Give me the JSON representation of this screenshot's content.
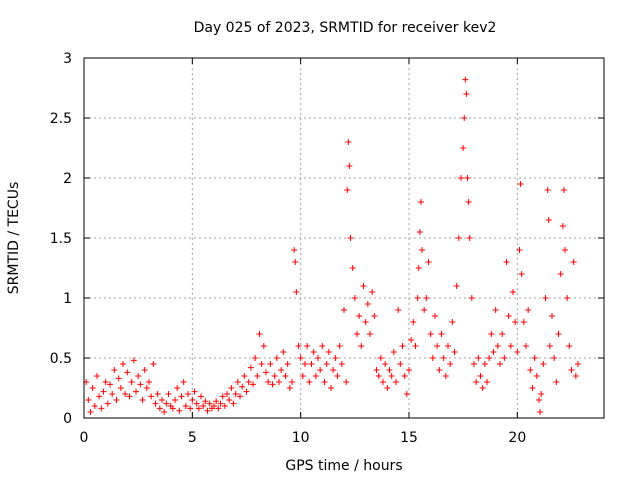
{
  "chart_data": {
    "type": "scatter",
    "title": "Day 025 of 2023, SRMTID for receiver kev2",
    "xlabel": "GPS time / hours",
    "ylabel": "SRMTID / TECUs",
    "xlim": [
      0,
      24
    ],
    "ylim": [
      0,
      3
    ],
    "xticks": [
      0,
      5,
      10,
      15,
      20
    ],
    "yticks": [
      0,
      0.5,
      1,
      1.5,
      2,
      2.5,
      3
    ],
    "xtick_labels": [
      "0",
      "5",
      "10",
      "15",
      "20"
    ],
    "ytick_labels": [
      "0",
      "0.5",
      "1",
      "1.5",
      "2",
      "2.5",
      "3"
    ],
    "grid": true,
    "marker": "+",
    "color": "#ff0000",
    "series": [
      {
        "name": "kev2",
        "points": [
          [
            0.1,
            0.3
          ],
          [
            0.2,
            0.15
          ],
          [
            0.3,
            0.05
          ],
          [
            0.4,
            0.25
          ],
          [
            0.5,
            0.1
          ],
          [
            0.6,
            0.35
          ],
          [
            0.7,
            0.18
          ],
          [
            0.8,
            0.08
          ],
          [
            0.9,
            0.22
          ],
          [
            1.0,
            0.3
          ],
          [
            1.1,
            0.12
          ],
          [
            1.2,
            0.28
          ],
          [
            1.3,
            0.2
          ],
          [
            1.4,
            0.4
          ],
          [
            1.5,
            0.15
          ],
          [
            1.6,
            0.33
          ],
          [
            1.7,
            0.25
          ],
          [
            1.8,
            0.45
          ],
          [
            1.9,
            0.2
          ],
          [
            2.0,
            0.38
          ],
          [
            2.1,
            0.18
          ],
          [
            2.2,
            0.3
          ],
          [
            2.3,
            0.48
          ],
          [
            2.4,
            0.22
          ],
          [
            2.5,
            0.35
          ],
          [
            2.6,
            0.28
          ],
          [
            2.7,
            0.15
          ],
          [
            2.8,
            0.4
          ],
          [
            2.9,
            0.25
          ],
          [
            3.0,
            0.3
          ],
          [
            3.1,
            0.18
          ],
          [
            3.2,
            0.45
          ],
          [
            3.3,
            0.12
          ],
          [
            3.4,
            0.2
          ],
          [
            3.5,
            0.08
          ],
          [
            3.6,
            0.15
          ],
          [
            3.7,
            0.05
          ],
          [
            3.8,
            0.12
          ],
          [
            3.9,
            0.2
          ],
          [
            4.0,
            0.1
          ],
          [
            4.1,
            0.08
          ],
          [
            4.2,
            0.15
          ],
          [
            4.3,
            0.25
          ],
          [
            4.4,
            0.06
          ],
          [
            4.5,
            0.18
          ],
          [
            4.6,
            0.3
          ],
          [
            4.7,
            0.1
          ],
          [
            4.8,
            0.2
          ],
          [
            4.9,
            0.08
          ],
          [
            5.0,
            0.15
          ],
          [
            5.1,
            0.22
          ],
          [
            5.2,
            0.12
          ],
          [
            5.3,
            0.08
          ],
          [
            5.4,
            0.18
          ],
          [
            5.5,
            0.1
          ],
          [
            5.6,
            0.14
          ],
          [
            5.7,
            0.06
          ],
          [
            5.8,
            0.12
          ],
          [
            5.9,
            0.08
          ],
          [
            6.0,
            0.1
          ],
          [
            6.1,
            0.14
          ],
          [
            6.2,
            0.08
          ],
          [
            6.3,
            0.12
          ],
          [
            6.4,
            0.18
          ],
          [
            6.5,
            0.1
          ],
          [
            6.6,
            0.2
          ],
          [
            6.7,
            0.15
          ],
          [
            6.8,
            0.25
          ],
          [
            6.9,
            0.12
          ],
          [
            7.0,
            0.2
          ],
          [
            7.1,
            0.3
          ],
          [
            7.2,
            0.18
          ],
          [
            7.3,
            0.26
          ],
          [
            7.4,
            0.35
          ],
          [
            7.5,
            0.22
          ],
          [
            7.6,
            0.3
          ],
          [
            7.7,
            0.42
          ],
          [
            7.8,
            0.28
          ],
          [
            7.9,
            0.5
          ],
          [
            8.0,
            0.35
          ],
          [
            8.1,
            0.7
          ],
          [
            8.2,
            0.45
          ],
          [
            8.3,
            0.6
          ],
          [
            8.4,
            0.38
          ],
          [
            8.5,
            0.3
          ],
          [
            8.6,
            0.45
          ],
          [
            8.7,
            0.28
          ],
          [
            8.8,
            0.35
          ],
          [
            8.9,
            0.5
          ],
          [
            9.0,
            0.3
          ],
          [
            9.1,
            0.4
          ],
          [
            9.2,
            0.55
          ],
          [
            9.3,
            0.35
          ],
          [
            9.4,
            0.45
          ],
          [
            9.5,
            0.25
          ],
          [
            9.6,
            0.3
          ],
          [
            9.7,
            1.4
          ],
          [
            9.75,
            1.3
          ],
          [
            9.8,
            1.05
          ],
          [
            9.9,
            0.6
          ],
          [
            10.0,
            0.5
          ],
          [
            10.1,
            0.35
          ],
          [
            10.2,
            0.45
          ],
          [
            10.3,
            0.6
          ],
          [
            10.4,
            0.3
          ],
          [
            10.5,
            0.45
          ],
          [
            10.6,
            0.55
          ],
          [
            10.7,
            0.35
          ],
          [
            10.8,
            0.5
          ],
          [
            10.9,
            0.4
          ],
          [
            11.0,
            0.6
          ],
          [
            11.1,
            0.3
          ],
          [
            11.2,
            0.45
          ],
          [
            11.3,
            0.55
          ],
          [
            11.4,
            0.25
          ],
          [
            11.5,
            0.4
          ],
          [
            11.6,
            0.5
          ],
          [
            11.7,
            0.35
          ],
          [
            11.8,
            0.6
          ],
          [
            11.9,
            0.45
          ],
          [
            12.0,
            0.9
          ],
          [
            12.1,
            0.3
          ],
          [
            12.15,
            1.9
          ],
          [
            12.2,
            2.3
          ],
          [
            12.25,
            2.1
          ],
          [
            12.3,
            1.5
          ],
          [
            12.4,
            1.25
          ],
          [
            12.5,
            1.0
          ],
          [
            12.6,
            0.7
          ],
          [
            12.7,
            0.85
          ],
          [
            12.8,
            0.6
          ],
          [
            12.9,
            1.1
          ],
          [
            13.0,
            0.8
          ],
          [
            13.1,
            0.95
          ],
          [
            13.2,
            0.7
          ],
          [
            13.3,
            1.05
          ],
          [
            13.4,
            0.85
          ],
          [
            13.5,
            0.4
          ],
          [
            13.6,
            0.35
          ],
          [
            13.7,
            0.5
          ],
          [
            13.8,
            0.3
          ],
          [
            13.9,
            0.45
          ],
          [
            14.0,
            0.25
          ],
          [
            14.1,
            0.4
          ],
          [
            14.2,
            0.35
          ],
          [
            14.3,
            0.55
          ],
          [
            14.4,
            0.3
          ],
          [
            14.5,
            0.9
          ],
          [
            14.6,
            0.45
          ],
          [
            14.7,
            0.6
          ],
          [
            14.8,
            0.35
          ],
          [
            14.9,
            0.2
          ],
          [
            15.0,
            0.4
          ],
          [
            15.1,
            0.65
          ],
          [
            15.2,
            0.8
          ],
          [
            15.3,
            0.6
          ],
          [
            15.4,
            1.0
          ],
          [
            15.45,
            1.25
          ],
          [
            15.5,
            1.55
          ],
          [
            15.55,
            1.8
          ],
          [
            15.6,
            1.4
          ],
          [
            15.7,
            0.9
          ],
          [
            15.8,
            1.0
          ],
          [
            15.9,
            1.3
          ],
          [
            16.0,
            0.7
          ],
          [
            16.1,
            0.5
          ],
          [
            16.2,
            0.85
          ],
          [
            16.3,
            0.6
          ],
          [
            16.4,
            0.4
          ],
          [
            16.5,
            0.7
          ],
          [
            16.6,
            0.5
          ],
          [
            16.7,
            0.35
          ],
          [
            16.8,
            0.6
          ],
          [
            16.9,
            0.45
          ],
          [
            17.0,
            0.8
          ],
          [
            17.1,
            0.55
          ],
          [
            17.2,
            1.1
          ],
          [
            17.3,
            1.5
          ],
          [
            17.4,
            2.0
          ],
          [
            17.5,
            2.25
          ],
          [
            17.55,
            2.5
          ],
          [
            17.6,
            2.82
          ],
          [
            17.65,
            2.7
          ],
          [
            17.7,
            2.0
          ],
          [
            17.75,
            1.8
          ],
          [
            17.8,
            1.5
          ],
          [
            17.9,
            1.0
          ],
          [
            18.0,
            0.45
          ],
          [
            18.1,
            0.3
          ],
          [
            18.2,
            0.5
          ],
          [
            18.3,
            0.35
          ],
          [
            18.4,
            0.25
          ],
          [
            18.5,
            0.45
          ],
          [
            18.6,
            0.3
          ],
          [
            18.7,
            0.5
          ],
          [
            18.8,
            0.7
          ],
          [
            18.9,
            0.55
          ],
          [
            19.0,
            0.9
          ],
          [
            19.1,
            0.6
          ],
          [
            19.2,
            0.45
          ],
          [
            19.3,
            0.7
          ],
          [
            19.4,
            0.5
          ],
          [
            19.5,
            1.3
          ],
          [
            19.6,
            0.85
          ],
          [
            19.7,
            0.6
          ],
          [
            19.8,
            1.05
          ],
          [
            19.9,
            0.8
          ],
          [
            20.0,
            0.55
          ],
          [
            20.1,
            1.4
          ],
          [
            20.15,
            1.95
          ],
          [
            20.2,
            1.2
          ],
          [
            20.3,
            0.8
          ],
          [
            20.4,
            0.6
          ],
          [
            20.5,
            0.9
          ],
          [
            20.6,
            0.4
          ],
          [
            20.7,
            0.25
          ],
          [
            20.8,
            0.5
          ],
          [
            20.9,
            0.35
          ],
          [
            21.0,
            0.15
          ],
          [
            21.05,
            0.05
          ],
          [
            21.1,
            0.2
          ],
          [
            21.2,
            0.45
          ],
          [
            21.3,
            1.0
          ],
          [
            21.4,
            1.9
          ],
          [
            21.45,
            1.65
          ],
          [
            21.5,
            0.6
          ],
          [
            21.6,
            0.85
          ],
          [
            21.7,
            0.5
          ],
          [
            21.8,
            0.3
          ],
          [
            21.9,
            0.7
          ],
          [
            22.0,
            1.2
          ],
          [
            22.1,
            1.6
          ],
          [
            22.15,
            1.9
          ],
          [
            22.2,
            1.4
          ],
          [
            22.3,
            1.0
          ],
          [
            22.4,
            0.6
          ],
          [
            22.5,
            0.4
          ],
          [
            22.6,
            1.3
          ],
          [
            22.7,
            0.35
          ],
          [
            22.8,
            0.45
          ]
        ]
      }
    ]
  }
}
